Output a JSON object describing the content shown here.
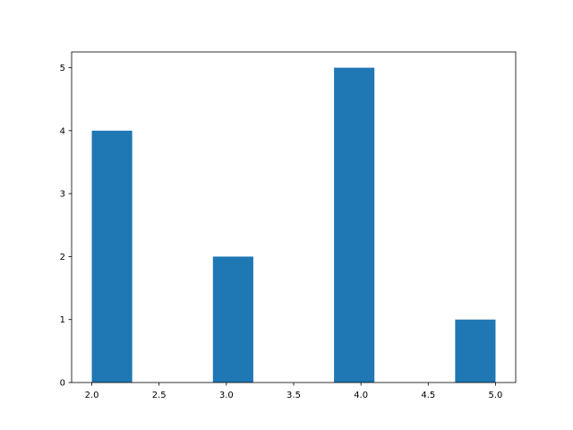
{
  "chart_data": {
    "type": "bar",
    "title": "",
    "xlabel": "",
    "ylabel": "",
    "bins": [
      {
        "x0": 2.0,
        "x1": 2.3,
        "count": 4
      },
      {
        "x0": 2.3,
        "x1": 2.6,
        "count": 0
      },
      {
        "x0": 2.6,
        "x1": 2.9,
        "count": 0
      },
      {
        "x0": 2.9,
        "x1": 3.2,
        "count": 2
      },
      {
        "x0": 3.2,
        "x1": 3.5,
        "count": 0
      },
      {
        "x0": 3.5,
        "x1": 3.8,
        "count": 0
      },
      {
        "x0": 3.8,
        "x1": 4.1,
        "count": 5
      },
      {
        "x0": 4.1,
        "x1": 4.4,
        "count": 0
      },
      {
        "x0": 4.4,
        "x1": 4.7,
        "count": 0
      },
      {
        "x0": 4.7,
        "x1": 5.0,
        "count": 1
      }
    ],
    "xlim": [
      1.85,
      5.15
    ],
    "ylim": [
      0,
      5.25
    ],
    "xticks": [
      "2.0",
      "2.5",
      "3.0",
      "3.5",
      "4.0",
      "4.5",
      "5.0"
    ],
    "yticks": [
      "0",
      "1",
      "2",
      "3",
      "4",
      "5"
    ],
    "grid": false,
    "bar_color": "#1f77b4"
  }
}
